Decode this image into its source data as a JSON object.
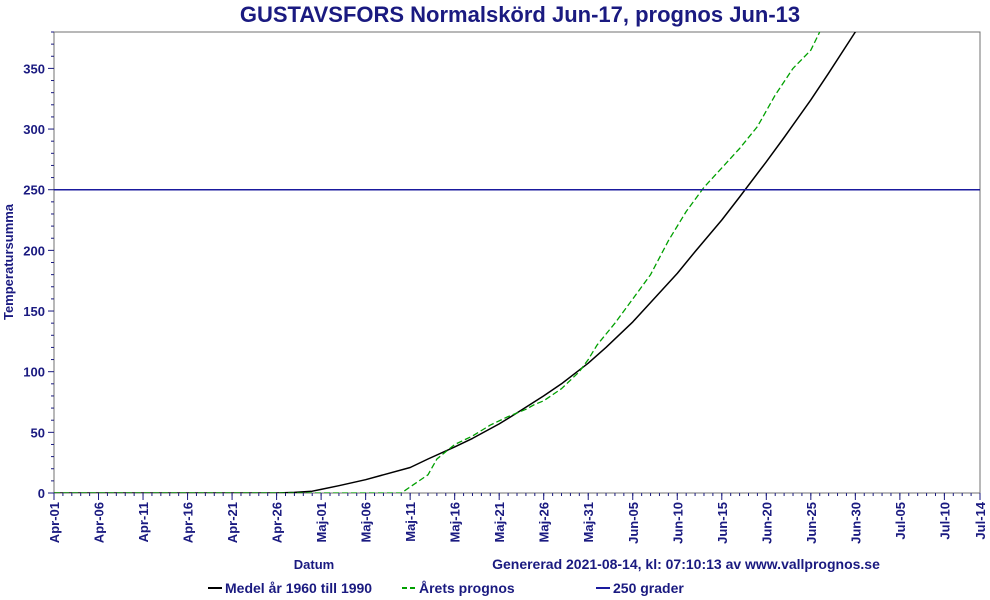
{
  "chart_data": {
    "type": "line",
    "title": "GUSTAVSFORS Normalskörd Jun-17, prognos Jun-13",
    "xlabel": "Datum",
    "ylabel": "Temperatursumma",
    "footer": "Genererad 2021-08-14, kl: 07:10:13 av www.vallprognos.se",
    "ylim": [
      0,
      380
    ],
    "yticks": [
      0,
      50,
      100,
      150,
      200,
      250,
      300,
      350
    ],
    "xlim": [
      "Apr-01",
      "Jul-14"
    ],
    "xticks": [
      "Apr-01",
      "Apr-06",
      "Apr-11",
      "Apr-16",
      "Apr-21",
      "Apr-26",
      "Maj-01",
      "Maj-06",
      "Maj-11",
      "Maj-16",
      "Maj-21",
      "Maj-26",
      "Maj-31",
      "Jun-05",
      "Jun-10",
      "Jun-15",
      "Jun-20",
      "Jun-25",
      "Jun-30",
      "Jul-05",
      "Jul-10",
      "Jul-14"
    ],
    "series": [
      {
        "name": "Medel år 1960 till 1990",
        "color": "#000000",
        "style": "solid",
        "x": [
          "Apr-01",
          "Apr-26",
          "Apr-28",
          "Apr-30",
          "Maj-01",
          "Maj-03",
          "Maj-06",
          "Maj-08",
          "Maj-11",
          "Maj-13",
          "Maj-16",
          "Maj-18",
          "Maj-21",
          "Maj-23",
          "Maj-26",
          "Maj-28",
          "Maj-31",
          "Jun-02",
          "Jun-05",
          "Jun-07",
          "Jun-10",
          "Jun-12",
          "Jun-15",
          "Jun-17",
          "Jun-20",
          "Jun-22",
          "Jun-25",
          "Jun-27",
          "Jun-30",
          "Jul-02"
        ],
        "y": [
          0,
          0,
          0.5,
          1.5,
          3,
          6,
          11,
          15,
          21,
          28,
          38,
          45,
          57,
          66,
          80,
          90,
          107,
          120,
          141,
          157,
          181,
          199,
          225,
          244,
          273,
          293,
          324,
          346,
          380,
          402
        ]
      },
      {
        "name": "Årets prognos",
        "color": "#00a000",
        "style": "dashed",
        "x": [
          "Apr-01",
          "Maj-10",
          "Maj-11",
          "Maj-13",
          "Maj-14",
          "Maj-16",
          "Maj-18",
          "Maj-20",
          "Maj-22",
          "Maj-24",
          "Maj-25",
          "Maj-26",
          "Maj-28",
          "Maj-30",
          "Maj-31",
          "Jun-01",
          "Jun-03",
          "Jun-05",
          "Jun-07",
          "Jun-09",
          "Jun-11",
          "Jun-13",
          "Jun-15",
          "Jun-17",
          "Jun-19",
          "Jun-21",
          "Jun-23",
          "Jun-25",
          "Jun-26"
        ],
        "y": [
          0,
          0,
          5,
          15,
          28,
          40,
          47,
          56,
          63,
          69,
          73,
          76,
          86,
          100,
          110,
          122,
          140,
          160,
          180,
          208,
          232,
          252,
          268,
          284,
          302,
          328,
          350,
          365,
          380
        ]
      },
      {
        "name": "250 grader",
        "color": "#1a1a9e",
        "style": "solid",
        "x": [
          "Apr-01",
          "Jul-14"
        ],
        "y": [
          250,
          250
        ]
      }
    ],
    "legend_placement": "bottom-center",
    "legend": [
      {
        "label": "Medel år 1960 till 1990",
        "color": "#000000",
        "style": "solid"
      },
      {
        "label": "Årets prognos",
        "color": "#00a000",
        "style": "dashed"
      },
      {
        "label": "250 grader",
        "color": "#1a1a9e",
        "style": "solid"
      }
    ]
  }
}
